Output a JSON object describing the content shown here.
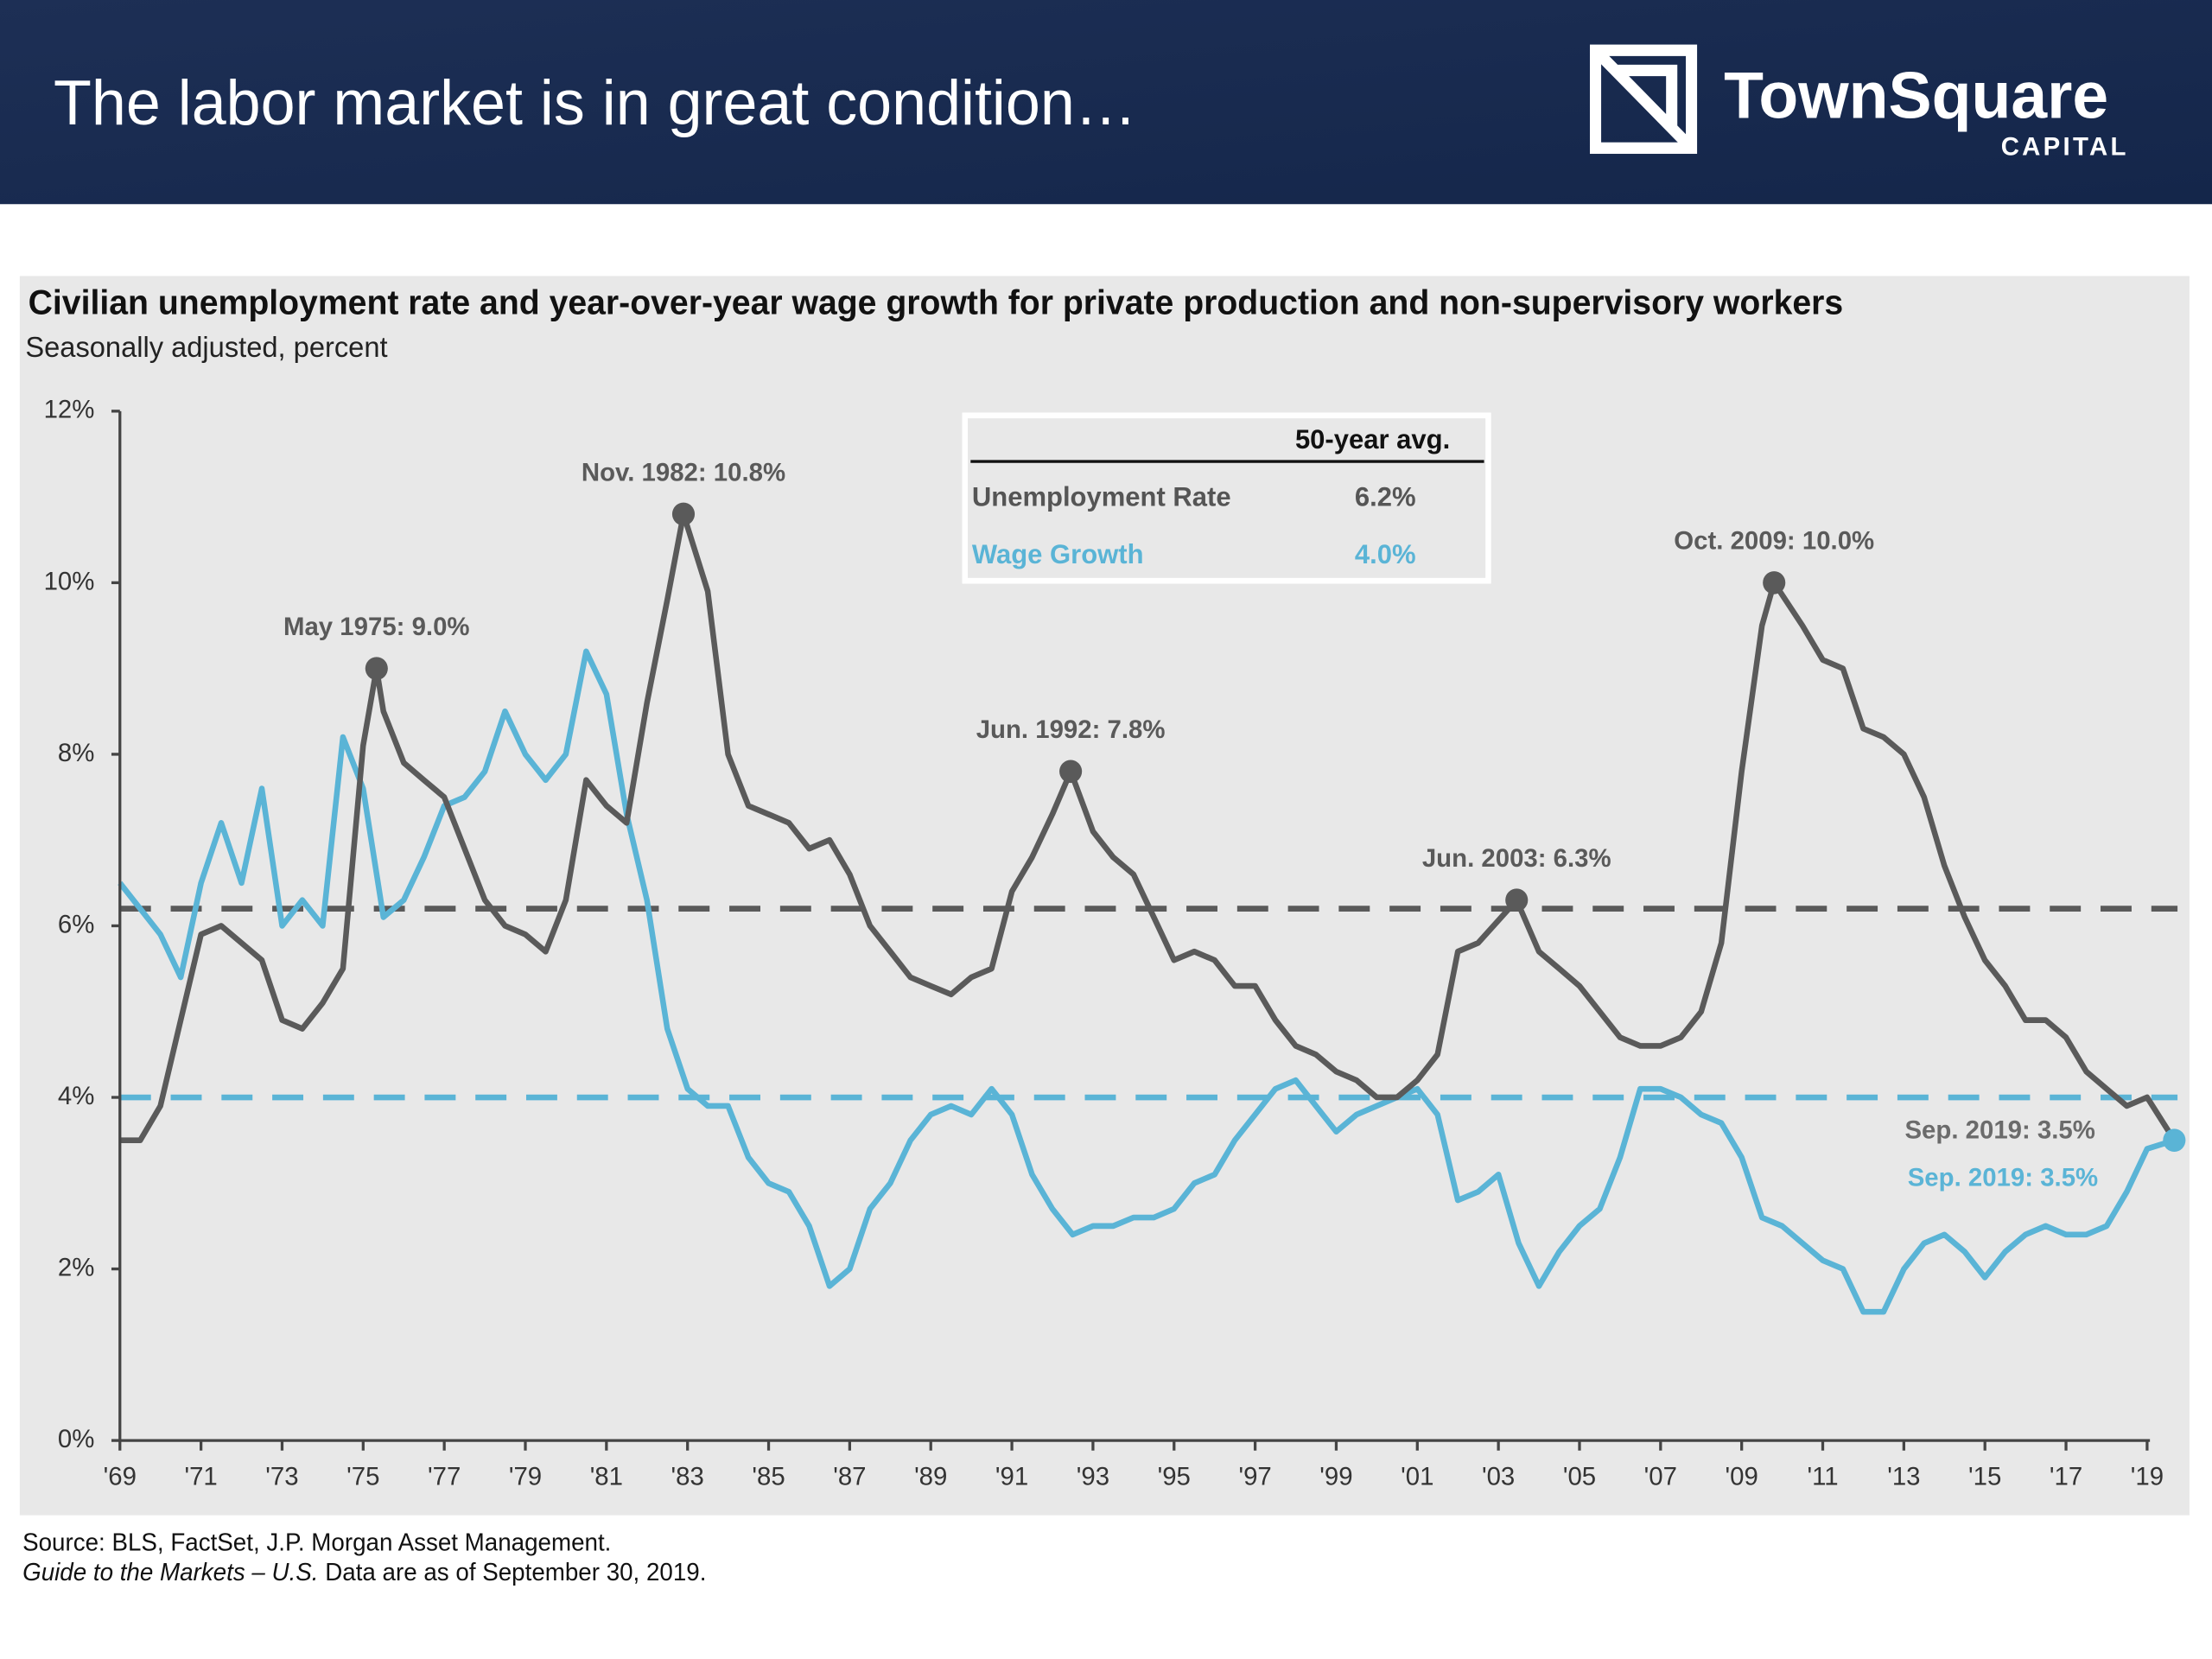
{
  "header": {
    "title": "The labor market is in great condition…",
    "logo_name": "TownSquare",
    "logo_sub": "CAPITAL"
  },
  "chart_data": {
    "type": "line",
    "title": "Civilian unemployment rate and year-over-year wage growth for private production and non-supervisory workers",
    "subtitle": "Seasonally adjusted, percent",
    "xlim": [
      1969,
      2019.75
    ],
    "xticks": [
      {
        "value": 1969,
        "label": "'69"
      },
      {
        "value": 1971,
        "label": "'71"
      },
      {
        "value": 1973,
        "label": "'73"
      },
      {
        "value": 1975,
        "label": "'75"
      },
      {
        "value": 1977,
        "label": "'77"
      },
      {
        "value": 1979,
        "label": "'79"
      },
      {
        "value": 1981,
        "label": "'81"
      },
      {
        "value": 1983,
        "label": "'83"
      },
      {
        "value": 1985,
        "label": "'85"
      },
      {
        "value": 1987,
        "label": "'87"
      },
      {
        "value": 1989,
        "label": "'89"
      },
      {
        "value": 1991,
        "label": "'91"
      },
      {
        "value": 1993,
        "label": "'93"
      },
      {
        "value": 1995,
        "label": "'95"
      },
      {
        "value": 1997,
        "label": "'97"
      },
      {
        "value": 1999,
        "label": "'99"
      },
      {
        "value": 2001,
        "label": "'01"
      },
      {
        "value": 2003,
        "label": "'03"
      },
      {
        "value": 2005,
        "label": "'05"
      },
      {
        "value": 2007,
        "label": "'07"
      },
      {
        "value": 2009,
        "label": "'09"
      },
      {
        "value": 2011,
        "label": "'11"
      },
      {
        "value": 2013,
        "label": "'13"
      },
      {
        "value": 2015,
        "label": "'15"
      },
      {
        "value": 2017,
        "label": "'17"
      },
      {
        "value": 2019,
        "label": "'19"
      }
    ],
    "ylim": [
      0,
      12
    ],
    "yticks": [
      {
        "value": 0,
        "label": "0%"
      },
      {
        "value": 2,
        "label": "2%"
      },
      {
        "value": 4,
        "label": "4%"
      },
      {
        "value": 6,
        "label": "6%"
      },
      {
        "value": 8,
        "label": "8%"
      },
      {
        "value": 10,
        "label": "10%"
      },
      {
        "value": 12,
        "label": "12%"
      }
    ],
    "table_header": "50-year avg.",
    "series": [
      {
        "name": "Unemployment Rate",
        "color": "#5a5a5a",
        "average": 6.2,
        "average_label": "6.2%",
        "x": [
          1969.0,
          1969.5,
          1970.0,
          1970.5,
          1971.0,
          1971.5,
          1972.0,
          1972.5,
          1973.0,
          1973.5,
          1974.0,
          1974.5,
          1975.0,
          1975.33,
          1975.5,
          1976.0,
          1976.5,
          1977.0,
          1977.5,
          1978.0,
          1978.5,
          1979.0,
          1979.5,
          1980.0,
          1980.5,
          1981.0,
          1981.5,
          1982.0,
          1982.5,
          1982.9,
          1983.5,
          1984.0,
          1984.5,
          1985.0,
          1985.5,
          1986.0,
          1986.5,
          1987.0,
          1987.5,
          1988.0,
          1988.5,
          1989.0,
          1989.5,
          1990.0,
          1990.5,
          1991.0,
          1991.5,
          1992.0,
          1992.45,
          1993.0,
          1993.5,
          1994.0,
          1994.5,
          1995.0,
          1995.5,
          1996.0,
          1996.5,
          1997.0,
          1997.5,
          1998.0,
          1998.5,
          1999.0,
          1999.5,
          2000.0,
          2000.5,
          2001.0,
          2001.5,
          2002.0,
          2002.5,
          2003.45,
          2004.0,
          2004.5,
          2005.0,
          2005.5,
          2006.0,
          2006.5,
          2007.0,
          2007.5,
          2008.0,
          2008.5,
          2009.0,
          2009.5,
          2009.8,
          2010.5,
          2011.0,
          2011.5,
          2012.0,
          2012.5,
          2013.0,
          2013.5,
          2014.0,
          2014.5,
          2015.0,
          2015.5,
          2016.0,
          2016.5,
          2017.0,
          2017.5,
          2018.0,
          2018.5,
          2019.0,
          2019.67
        ],
        "values": [
          3.5,
          3.5,
          3.9,
          4.9,
          5.9,
          6.0,
          5.8,
          5.6,
          4.9,
          4.8,
          5.1,
          5.5,
          8.1,
          9.0,
          8.5,
          7.9,
          7.7,
          7.5,
          6.9,
          6.3,
          6.0,
          5.9,
          5.7,
          6.3,
          7.7,
          7.4,
          7.2,
          8.6,
          9.8,
          10.8,
          9.9,
          8.0,
          7.4,
          7.3,
          7.2,
          6.9,
          7.0,
          6.6,
          6.0,
          5.7,
          5.4,
          5.3,
          5.2,
          5.4,
          5.5,
          6.4,
          6.8,
          7.3,
          7.8,
          7.1,
          6.8,
          6.6,
          6.1,
          5.6,
          5.7,
          5.6,
          5.3,
          5.3,
          4.9,
          4.6,
          4.5,
          4.3,
          4.2,
          4.0,
          4.0,
          4.2,
          4.5,
          5.7,
          5.8,
          6.3,
          5.7,
          5.5,
          5.3,
          5.0,
          4.7,
          4.6,
          4.6,
          4.7,
          5.0,
          5.8,
          7.8,
          9.5,
          10.0,
          9.5,
          9.1,
          9.0,
          8.3,
          8.2,
          8.0,
          7.5,
          6.7,
          6.1,
          5.6,
          5.3,
          4.9,
          4.9,
          4.7,
          4.3,
          4.1,
          3.9,
          4.0,
          3.5
        ]
      },
      {
        "name": "Wage Growth",
        "color": "#5ab4d6",
        "average": 4.0,
        "average_label": "4.0%",
        "x": [
          1969.0,
          1969.5,
          1970.0,
          1970.5,
          1971.0,
          1971.5,
          1972.0,
          1972.5,
          1973.0,
          1973.5,
          1974.0,
          1974.5,
          1975.0,
          1975.5,
          1976.0,
          1976.5,
          1977.0,
          1977.5,
          1978.0,
          1978.5,
          1979.0,
          1979.5,
          1980.0,
          1980.5,
          1981.0,
          1981.5,
          1982.0,
          1982.5,
          1983.0,
          1983.5,
          1984.0,
          1984.5,
          1985.0,
          1985.5,
          1986.0,
          1986.5,
          1987.0,
          1987.5,
          1988.0,
          1988.5,
          1989.0,
          1989.5,
          1990.0,
          1990.5,
          1991.0,
          1991.5,
          1992.0,
          1992.5,
          1993.0,
          1993.5,
          1994.0,
          1994.5,
          1995.0,
          1995.5,
          1996.0,
          1996.5,
          1997.0,
          1997.5,
          1998.0,
          1998.5,
          1999.0,
          1999.5,
          2000.0,
          2000.5,
          2001.0,
          2001.5,
          2002.0,
          2002.5,
          2003.0,
          2003.5,
          2004.0,
          2004.5,
          2005.0,
          2005.5,
          2006.0,
          2006.5,
          2007.0,
          2007.5,
          2008.0,
          2008.5,
          2009.0,
          2009.5,
          2010.0,
          2010.5,
          2011.0,
          2011.5,
          2012.0,
          2012.5,
          2013.0,
          2013.5,
          2014.0,
          2014.5,
          2015.0,
          2015.5,
          2016.0,
          2016.5,
          2017.0,
          2017.5,
          2018.0,
          2018.5,
          2019.0,
          2019.67
        ],
        "values": [
          6.5,
          6.2,
          5.9,
          5.4,
          6.5,
          7.2,
          6.5,
          7.6,
          6.0,
          6.3,
          6.0,
          8.2,
          7.6,
          6.1,
          6.3,
          6.8,
          7.4,
          7.5,
          7.8,
          8.5,
          8.0,
          7.7,
          8.0,
          9.2,
          8.7,
          7.3,
          6.3,
          4.8,
          4.1,
          3.9,
          3.9,
          3.3,
          3.0,
          2.9,
          2.5,
          1.8,
          2.0,
          2.7,
          3.0,
          3.5,
          3.8,
          3.9,
          3.8,
          4.1,
          3.8,
          3.1,
          2.7,
          2.4,
          2.5,
          2.5,
          2.6,
          2.6,
          2.7,
          3.0,
          3.1,
          3.5,
          3.8,
          4.1,
          4.2,
          3.9,
          3.6,
          3.8,
          3.9,
          4.0,
          4.1,
          3.8,
          2.8,
          2.9,
          3.1,
          2.3,
          1.8,
          2.2,
          2.5,
          2.7,
          3.3,
          4.1,
          4.1,
          4.0,
          3.8,
          3.7,
          3.3,
          2.6,
          2.5,
          2.3,
          2.1,
          2.0,
          1.5,
          1.5,
          2.0,
          2.3,
          2.4,
          2.2,
          1.9,
          2.2,
          2.4,
          2.5,
          2.4,
          2.4,
          2.5,
          2.9,
          3.4,
          3.5
        ]
      }
    ],
    "annotations": [
      {
        "text": "May 1975: 9.0%",
        "x": 1975.33,
        "y": 9.0,
        "color": "#5a5a5a",
        "placement": "above",
        "marker": true
      },
      {
        "text": "Nov. 1982: 10.8%",
        "x": 1982.9,
        "y": 10.8,
        "color": "#5a5a5a",
        "placement": "above",
        "marker": true
      },
      {
        "text": "Jun. 1992: 7.8%",
        "x": 1992.45,
        "y": 7.8,
        "color": "#5a5a5a",
        "placement": "above",
        "marker": true
      },
      {
        "text": "Jun. 2003: 6.3%",
        "x": 2003.45,
        "y": 6.3,
        "color": "#5a5a5a",
        "placement": "above",
        "marker": true
      },
      {
        "text": "Oct. 2009: 10.0%",
        "x": 2009.8,
        "y": 10.0,
        "color": "#5a5a5a",
        "placement": "above",
        "marker": true
      },
      {
        "text": "Sep. 2019: 3.5%",
        "x": 2019.67,
        "y": 3.5,
        "color": "#6b6b6b",
        "placement": "left-above",
        "marker": false
      },
      {
        "text": "Sep. 2019: 3.5%",
        "x": 2019.67,
        "y": 3.5,
        "color": "#5ab4d6",
        "placement": "left-below",
        "marker": true
      }
    ]
  },
  "footer": {
    "source": "Source: BLS, FactSet, J.P. Morgan Asset Management.",
    "guide": "Guide to the Markets – U.S.",
    "note": " Data are as of September 30, 2019."
  }
}
